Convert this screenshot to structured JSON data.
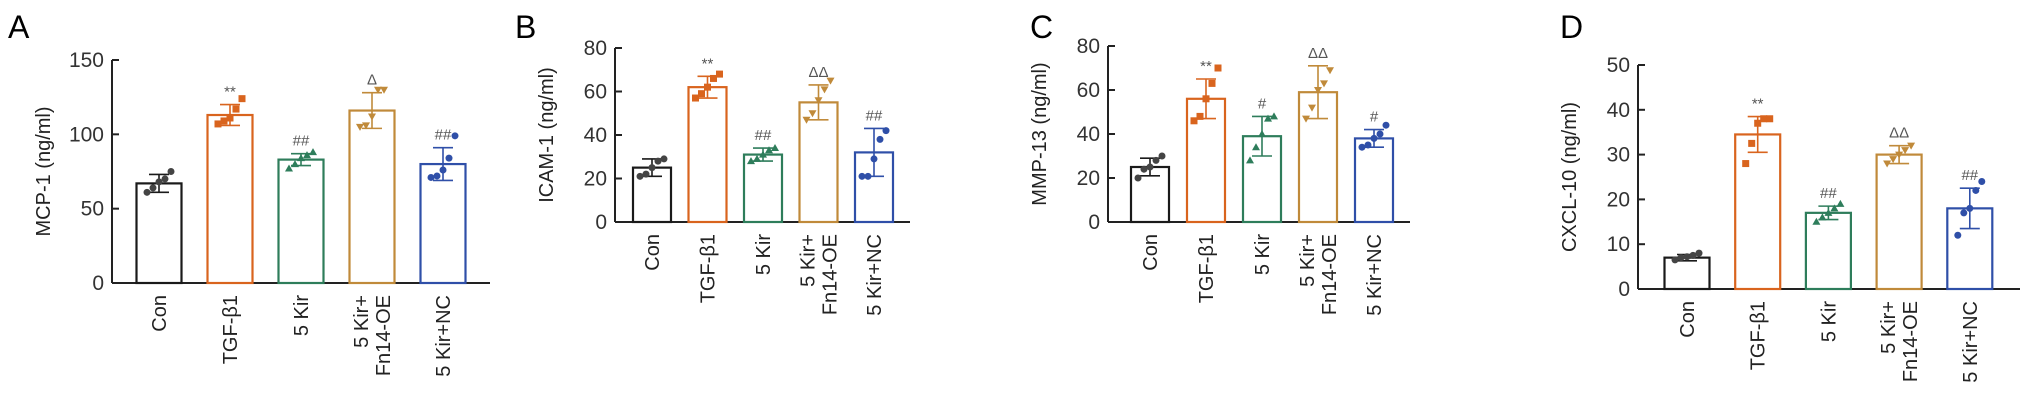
{
  "colors": {
    "Con": "#1a1a1a",
    "TGF-β1": "#d9641e",
    "5 Kir": "#2e7d5b",
    "5 Kir+ Fn14-OE": "#c08a3a",
    "5 Kir+NC": "#2f4fa8"
  },
  "chart_data": [
    {
      "type": "bar",
      "panel_label": "A",
      "ylabel": "MCP-1 (ng/ml)",
      "ylim": [
        0,
        150
      ],
      "yticks": [
        0,
        50,
        100,
        150
      ],
      "categories": [
        "Con",
        "TGF-β1",
        "5 Kir",
        "5 Kir+\nFn14-OE",
        "5 Kir+NC"
      ],
      "values": [
        67,
        113,
        83,
        116,
        80
      ],
      "sd": [
        6,
        7,
        4,
        12,
        11
      ],
      "annotations": [
        "",
        "**",
        "##",
        "Δ",
        "##"
      ],
      "points": [
        [
          61,
          64,
          68,
          70,
          75
        ],
        [
          107,
          109,
          111,
          117,
          124
        ],
        [
          77,
          80,
          84,
          86,
          88
        ],
        [
          105,
          106,
          112,
          130,
          130
        ],
        [
          71,
          72,
          76,
          84,
          99
        ]
      ]
    },
    {
      "type": "bar",
      "panel_label": "B",
      "ylabel": "ICAM-1 (ng/ml)",
      "ylim": [
        0,
        80
      ],
      "yticks": [
        0,
        20,
        40,
        60,
        80
      ],
      "categories": [
        "Con",
        "TGF-β1",
        "5 Kir",
        "5 Kir+\nFn14-OE",
        "5 Kir+NC"
      ],
      "values": [
        25,
        62,
        31,
        55,
        32
      ],
      "sd": [
        4,
        5,
        3,
        8,
        11
      ],
      "annotations": [
        "",
        "**",
        "##",
        "ΔΔ",
        "##"
      ],
      "points": [
        [
          21,
          22,
          25,
          28,
          29
        ],
        [
          57,
          59,
          62,
          66,
          68
        ],
        [
          28,
          29,
          31,
          33,
          34
        ],
        [
          47,
          50,
          56,
          61,
          65
        ],
        [
          21,
          21,
          29,
          38,
          42
        ]
      ]
    },
    {
      "type": "bar",
      "panel_label": "C",
      "ylabel": "MMP-13 (ng/ml)",
      "ylim": [
        0,
        80
      ],
      "yticks": [
        0,
        20,
        40,
        60,
        80
      ],
      "categories": [
        "Con",
        "TGF-β1",
        "5 Kir",
        "5 Kir+\nFn14-OE",
        "5 Kir+NC"
      ],
      "values": [
        25,
        56,
        39,
        59,
        38
      ],
      "sd": [
        4,
        9,
        9,
        12,
        4
      ],
      "annotations": [
        "",
        "**",
        "#",
        "ΔΔ",
        "#"
      ],
      "points": [
        [
          20,
          24,
          25,
          28,
          30
        ],
        [
          46,
          48,
          56,
          63,
          70
        ],
        [
          28,
          34,
          40,
          47,
          48
        ],
        [
          47,
          52,
          60,
          63,
          69
        ],
        [
          34,
          35,
          38,
          40,
          44
        ]
      ]
    },
    {
      "type": "bar",
      "panel_label": "D",
      "ylabel": "CXCL-10 (ng/ml)",
      "ylim": [
        0,
        50
      ],
      "yticks": [
        0,
        10,
        20,
        30,
        40,
        50
      ],
      "categories": [
        "Con",
        "TGF-β1",
        "5 Kir",
        "5 Kir+\nFn14-OE",
        "5 Kir+NC"
      ],
      "values": [
        7,
        34.5,
        17,
        30,
        18
      ],
      "sd": [
        0.7,
        4,
        1.5,
        2,
        4.5
      ],
      "annotations": [
        "",
        "**",
        "##",
        "ΔΔ",
        "##"
      ],
      "points": [
        [
          6.5,
          7,
          7.2,
          7.5,
          8
        ],
        [
          28,
          32.5,
          37,
          38,
          38
        ],
        [
          15,
          16,
          17,
          18,
          19
        ],
        [
          28,
          29,
          30,
          31,
          32
        ],
        [
          12,
          17,
          18,
          22,
          24
        ]
      ]
    }
  ]
}
